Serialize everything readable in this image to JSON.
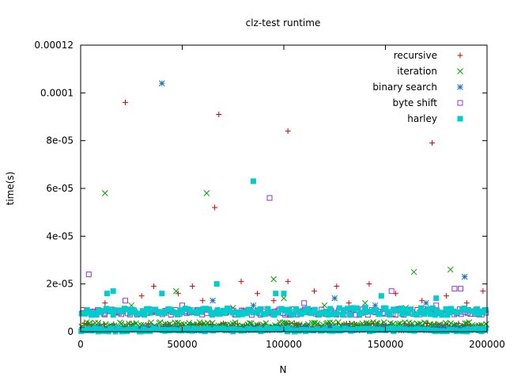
{
  "chart_data": {
    "type": "scatter",
    "title": "clz-test runtime",
    "xlabel": "N",
    "ylabel": "time(s)",
    "xlim": [
      0,
      200000
    ],
    "ylim": [
      0,
      0.00012
    ],
    "x_ticks": [
      {
        "value": 0,
        "label": "0"
      },
      {
        "value": 50000,
        "label": "50000"
      },
      {
        "value": 100000,
        "label": "100000"
      },
      {
        "value": 150000,
        "label": "150000"
      },
      {
        "value": 200000,
        "label": "200000"
      }
    ],
    "y_ticks": [
      {
        "value": 0,
        "label": "0"
      },
      {
        "value": 2e-05,
        "label": "2e-05"
      },
      {
        "value": 4e-05,
        "label": "4e-05"
      },
      {
        "value": 6e-05,
        "label": "6e-05"
      },
      {
        "value": 8e-05,
        "label": "8e-05"
      },
      {
        "value": 0.0001,
        "label": "0.0001"
      },
      {
        "value": 0.00012,
        "label": "0.00012"
      }
    ],
    "grid": false,
    "legend_position": "top-right",
    "series": [
      {
        "name": "recursive",
        "marker": "plus",
        "color": "#d40000",
        "points": [
          [
            22000,
            9.6e-05
          ],
          [
            68000,
            9.1e-05
          ],
          [
            102000,
            8.4e-05
          ],
          [
            173000,
            7.9e-05
          ],
          [
            66000,
            5.2e-05
          ],
          [
            55000,
            1.9e-05
          ],
          [
            79000,
            2.1e-05
          ],
          [
            102000,
            2.1e-05
          ],
          [
            126000,
            1.9e-05
          ],
          [
            142000,
            2e-05
          ],
          [
            198000,
            1.7e-05
          ],
          [
            36000,
            1.9e-05
          ],
          [
            48000,
            1.6e-05
          ],
          [
            30000,
            1.5e-05
          ],
          [
            87000,
            1.6e-05
          ],
          [
            115000,
            1.7e-05
          ],
          [
            155000,
            1.6e-05
          ],
          [
            180000,
            1.5e-05
          ],
          [
            12000,
            1.2e-05
          ],
          [
            60000,
            1.3e-05
          ],
          [
            95000,
            1.3e-05
          ],
          [
            132000,
            1.2e-05
          ],
          [
            168000,
            1.3e-05
          ],
          [
            190000,
            1.2e-05
          ]
        ],
        "band": [
          1e-06,
          3.5e-06
        ]
      },
      {
        "name": "iteration",
        "marker": "x",
        "color": "#00a000",
        "points": [
          [
            12000,
            5.8e-05
          ],
          [
            62000,
            5.8e-05
          ],
          [
            95000,
            2.2e-05
          ],
          [
            164000,
            2.5e-05
          ],
          [
            182000,
            2.6e-05
          ],
          [
            47000,
            1.7e-05
          ],
          [
            100000,
            1.4e-05
          ],
          [
            140000,
            1.2e-05
          ],
          [
            25000,
            1.1e-05
          ],
          [
            75000,
            1e-05
          ],
          [
            120000,
            1.1e-05
          ],
          [
            160000,
            1e-05
          ]
        ],
        "band": [
          2e-06,
          4e-06
        ]
      },
      {
        "name": "binary search",
        "marker": "star",
        "color": "#1a74b8",
        "points": [
          [
            40000,
            0.000104
          ],
          [
            189000,
            2.3e-05
          ],
          [
            65000,
            1.3e-05
          ],
          [
            125000,
            1.4e-05
          ],
          [
            170000,
            1.2e-05
          ],
          [
            85000,
            1.1e-05
          ],
          [
            145000,
            1.1e-05
          ]
        ],
        "band": [
          5e-07,
          2e-06
        ]
      },
      {
        "name": "byte shift",
        "marker": "open-square",
        "color": "#9933cc",
        "points": [
          [
            4000,
            2.4e-05
          ],
          [
            93000,
            5.6e-05
          ],
          [
            153000,
            1.7e-05
          ],
          [
            184000,
            1.8e-05
          ],
          [
            187000,
            1.8e-05
          ],
          [
            22000,
            1.3e-05
          ],
          [
            110000,
            1.2e-05
          ],
          [
            175000,
            1.1e-05
          ],
          [
            199000,
            9e-06
          ],
          [
            50000,
            1.1e-05
          ],
          [
            140000,
            1e-05
          ]
        ],
        "band": [
          7e-06,
          9.5e-06
        ]
      },
      {
        "name": "harley",
        "marker": "filled-square",
        "color": "#00cccc",
        "points": [
          [
            85000,
            6.3e-05
          ],
          [
            40000,
            1.6e-05
          ],
          [
            67000,
            2e-05
          ],
          [
            16000,
            1.7e-05
          ],
          [
            96000,
            1.6e-05
          ],
          [
            100000,
            1.6e-05
          ],
          [
            13000,
            1.6e-05
          ],
          [
            175000,
            1.4e-05
          ],
          [
            148000,
            1.5e-05
          ]
        ],
        "band": [
          7e-06,
          1e-05
        ],
        "bottom_band": [
          0.0,
          1.5e-06
        ]
      }
    ]
  }
}
